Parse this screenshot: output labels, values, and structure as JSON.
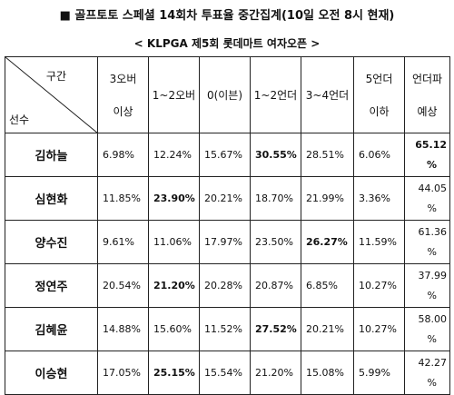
{
  "title": "■ 골프토토 스페셜 14회차 투표율 중간집계(10일 오전 8시 현재)",
  "subtitle": "< KLPGA 제5회 롯데마트 여자오픈 >",
  "table": {
    "corner_top": "구간",
    "corner_bottom": "선수",
    "headers": [
      {
        "line1": "3오버",
        "line2": "이상"
      },
      {
        "line1": "",
        "line2": "1~2오버"
      },
      {
        "line1": "",
        "line2": "0(이븐)"
      },
      {
        "line1": "",
        "line2": "1~2언더"
      },
      {
        "line1": "",
        "line2": "3~4언더"
      },
      {
        "line1": "5언더",
        "line2": "이하"
      },
      {
        "line1": "언더파",
        "line2": "예상"
      }
    ],
    "rows": [
      {
        "name": "김하늘",
        "cells": [
          "6.98%",
          "12.24%",
          "15.67%",
          "30.55%",
          "28.51%",
          "6.06%"
        ],
        "bold": [
          3
        ],
        "last1": "65.12",
        "last2": "%",
        "lastBold": true
      },
      {
        "name": "심현화",
        "cells": [
          "11.85%",
          "23.90%",
          "20.21%",
          "18.70%",
          "21.99%",
          "3.36%"
        ],
        "bold": [
          1
        ],
        "last1": "44.05",
        "last2": "%",
        "lastBold": false
      },
      {
        "name": "양수진",
        "cells": [
          "9.61%",
          "11.06%",
          "17.97%",
          "23.50%",
          "26.27%",
          "11.59%"
        ],
        "bold": [
          4
        ],
        "last1": "61.36",
        "last2": "%",
        "lastBold": false
      },
      {
        "name": "정연주",
        "cells": [
          "20.54%",
          "21.20%",
          "20.28%",
          "20.87%",
          "6.85%",
          "10.27%"
        ],
        "bold": [
          1
        ],
        "last1": "37.99",
        "last2": "%",
        "lastBold": false
      },
      {
        "name": "김혜윤",
        "cells": [
          "14.88%",
          "15.60%",
          "11.52%",
          "27.52%",
          "20.21%",
          "10.27%"
        ],
        "bold": [
          3
        ],
        "last1": "58.00",
        "last2": "%",
        "lastBold": false
      },
      {
        "name": "이승현",
        "cells": [
          "17.05%",
          "25.15%",
          "15.54%",
          "21.20%",
          "15.08%",
          "5.99%"
        ],
        "bold": [
          1
        ],
        "last1": "42.27",
        "last2": "%",
        "lastBold": false
      }
    ]
  }
}
